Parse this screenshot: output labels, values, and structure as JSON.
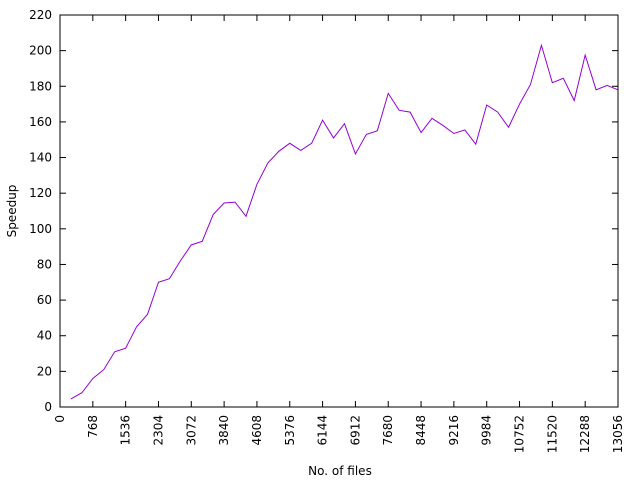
{
  "chart_data": {
    "type": "line",
    "x_label": "No. of files",
    "y_label": "Speedup",
    "x": [
      256,
      512,
      768,
      1024,
      1280,
      1536,
      1792,
      2048,
      2304,
      2560,
      2816,
      3072,
      3328,
      3584,
      3840,
      4096,
      4352,
      4608,
      4864,
      5120,
      5376,
      5632,
      5888,
      6144,
      6400,
      6656,
      6912,
      7168,
      7424,
      7680,
      7936,
      8192,
      8448,
      8704,
      8960,
      9216,
      9472,
      9728,
      9984,
      10240,
      10496,
      10752,
      11008,
      11264,
      11520,
      11776,
      12032,
      12288,
      12544,
      12800,
      13056
    ],
    "series": [
      {
        "color": "#9400d3",
        "values": [
          4.5,
          8,
          16,
          21,
          31,
          33,
          45,
          52,
          70,
          72,
          82,
          91,
          93,
          108,
          114.5,
          115,
          107,
          125,
          137,
          143.5,
          148,
          144,
          148,
          161,
          151,
          159,
          142,
          153,
          155,
          176,
          166.5,
          165.5,
          154,
          162,
          158,
          153.5,
          155.5,
          147.5,
          169.5,
          165.5,
          157,
          170,
          181,
          203,
          182,
          184.5,
          172,
          197.5,
          178,
          180.5,
          178
        ]
      }
    ],
    "xlim": [
      0,
      13056
    ],
    "ylim": [
      0,
      220
    ],
    "xticks": [
      0,
      768,
      1536,
      2304,
      3072,
      3840,
      4608,
      5376,
      6144,
      6912,
      7680,
      8448,
      9216,
      9984,
      10752,
      11520,
      12288,
      13056
    ],
    "yticks": [
      0,
      20,
      40,
      60,
      80,
      100,
      120,
      140,
      160,
      180,
      200,
      220
    ]
  }
}
